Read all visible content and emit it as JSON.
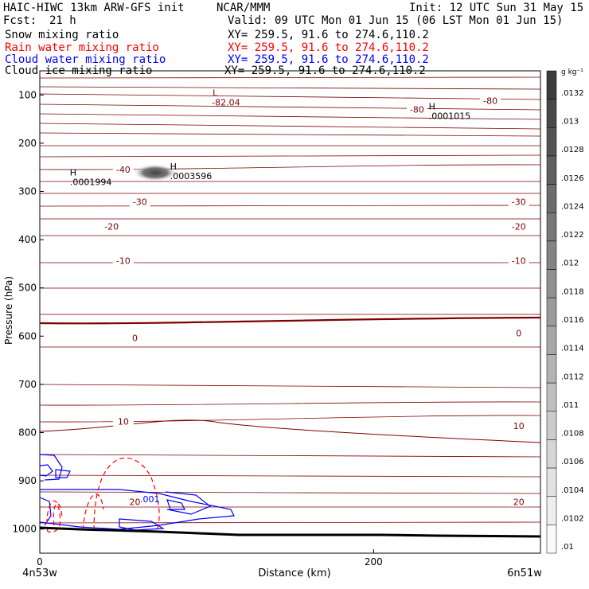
{
  "header": {
    "model": "HAIC-HIWC 13km ARW-GFS init",
    "org": "NCAR/MMM",
    "init": "Init: 12 UTC Sun 31 May 15",
    "fcst_label": "Fcst:",
    "fcst_value": "21 h",
    "valid": "Valid: 09 UTC Mon 01 Jun 15 (06 LST Mon 01 Jun 15)"
  },
  "fields": [
    {
      "name": "Snow mixing ratio",
      "xy": "XY= 259.5, 91.6 to 274.6,110.2",
      "color": "#000000"
    },
    {
      "name": "Rain water mixing ratio",
      "xy": "XY= 259.5, 91.6 to 274.6,110.2",
      "color": "#ff0000"
    },
    {
      "name": "Cloud water mixing ratio",
      "xy": "XY= 259.5, 91.6 to 274.6,110.2",
      "color": "#0000ff"
    },
    {
      "name": "Cloud ice mixing ratio",
      "xy": "XY= 259.5, 91.6 to 274.6,110.2",
      "color": "#000000"
    }
  ],
  "chart_data": {
    "type": "contour",
    "xlabel": "Distance (km)",
    "ylabel": "Pressure (hPa)",
    "xlim": [
      0,
      300
    ],
    "ylim": [
      1050,
      50
    ],
    "x_ticks": [
      0,
      200
    ],
    "y_ticks": [
      100,
      200,
      300,
      400,
      500,
      600,
      700,
      800,
      900,
      1000
    ],
    "x_endpoints": [
      "4n53w",
      "6n51w"
    ],
    "colorbar": {
      "unit": "g kg⁻¹",
      "labels": [
        ".0132",
        ".013",
        ".0128",
        ".0126",
        ".0124",
        ".0122",
        ".012",
        ".0118",
        ".0116",
        ".0114",
        ".0112",
        ".011",
        ".0108",
        ".0106",
        ".0104",
        ".0102",
        ".01"
      ]
    },
    "temperature_labels": [
      {
        "text": "-80",
        "x": 270,
        "p": 115
      },
      {
        "text": "-80",
        "x": 226,
        "p": 133
      },
      {
        "text": "-40",
        "x": 50,
        "p": 258
      },
      {
        "text": "-30",
        "x": 60,
        "p": 325
      },
      {
        "text": "-30",
        "x": 287,
        "p": 325
      },
      {
        "text": "-20",
        "x": 43,
        "p": 376
      },
      {
        "text": "-20",
        "x": 287,
        "p": 376
      },
      {
        "text": "-10",
        "x": 50,
        "p": 447
      },
      {
        "text": "-10",
        "x": 287,
        "p": 447
      },
      {
        "text": "0",
        "x": 57,
        "p": 607
      },
      {
        "text": "0",
        "x": 287,
        "p": 597
      },
      {
        "text": "10",
        "x": 50,
        "p": 780
      },
      {
        "text": "10",
        "x": 287,
        "p": 789
      },
      {
        "text": "20",
        "x": 57,
        "p": 947
      },
      {
        "text": "20",
        "x": 287,
        "p": 947
      }
    ],
    "extrema": [
      {
        "kind": "L",
        "value": "-82.04",
        "x": 105,
        "p": 102
      },
      {
        "kind": "H",
        "value": ".0001015",
        "x": 235,
        "p": 130
      },
      {
        "kind": "H",
        "value": ".0003596",
        "x": 80,
        "p": 255
      },
      {
        "kind": "H",
        "value": ".0001994",
        "x": 20,
        "p": 267
      }
    ],
    "cloud_water_label": {
      "text": ".001",
      "x": 63,
      "p": 995
    }
  }
}
